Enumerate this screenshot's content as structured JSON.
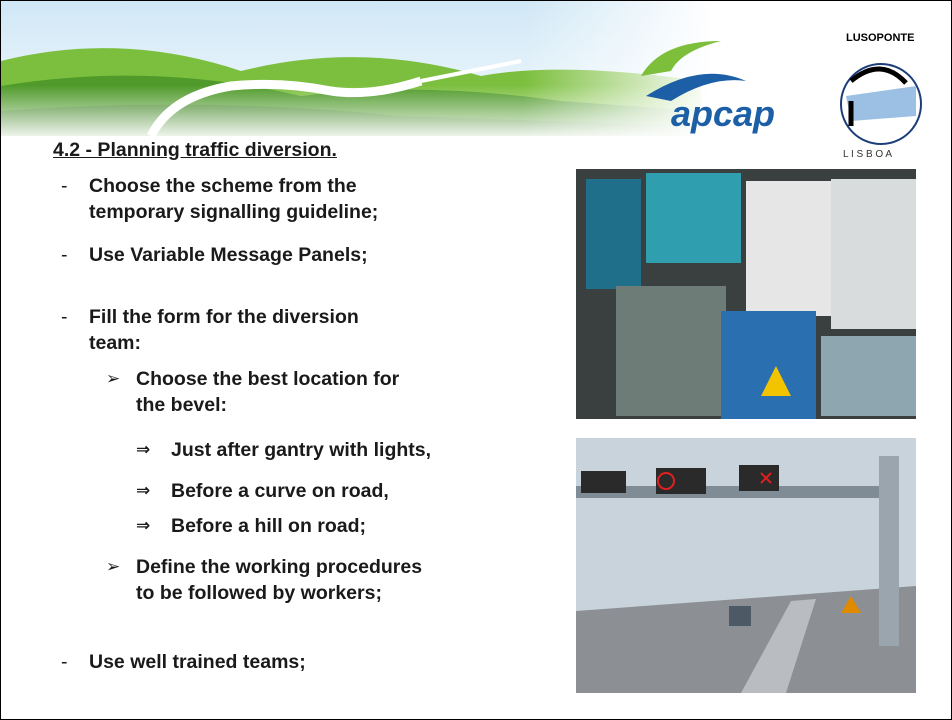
{
  "logos": {
    "apcap": "apcap",
    "lusoponte": "LUSOPONTE",
    "lisboa": "L I S B O A"
  },
  "heading": "4.2 - Planning traffic diversion.",
  "items": [
    {
      "marker": "-",
      "lines": [
        "Choose the scheme from the",
        "temporary  signalling guideline;"
      ]
    },
    {
      "marker": "-",
      "lines": [
        "Use Variable Message Panels;"
      ]
    },
    {
      "marker": "-",
      "lines": [
        "Fill the form for the diversion",
        "team:"
      ]
    },
    {
      "marker": "➢",
      "lines": [
        "Choose the best location for",
        "the bevel:"
      ]
    },
    {
      "marker": "⇒",
      "lines": [
        "Just after gantry with lights,"
      ]
    },
    {
      "marker": "⇒",
      "lines": [
        "Before a curve on road,"
      ]
    },
    {
      "marker": "⇒",
      "lines": [
        "Before a hill on road;"
      ]
    },
    {
      "marker": "➢",
      "lines": [
        "Define the working procedures",
        "to be followed by workers;"
      ]
    },
    {
      "marker": "-",
      "lines": [
        "Use well trained teams;"
      ]
    }
  ]
}
